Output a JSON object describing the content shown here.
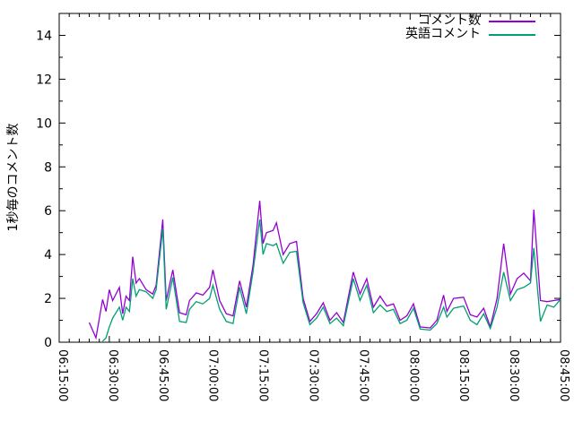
{
  "chart_data": {
    "type": "line",
    "title": "",
    "xlabel": "",
    "ylabel": "1秒毎のコメント数",
    "background_color": "#ffffff",
    "axis_color": "#000000",
    "grid": false,
    "legend_position": "top-right-inside",
    "ylim": [
      0,
      15
    ],
    "y_major_step": 2,
    "y_minor_step": 1,
    "y_tick_labels": [
      "0",
      "2",
      "4",
      "6",
      "8",
      "10",
      "12",
      "14"
    ],
    "x_range_minutes": [
      375,
      525
    ],
    "x_major_step_min": 15,
    "x_minor_step_min": 3,
    "x_tick_labels": [
      "06:15:00",
      "06:30:00",
      "06:45:00",
      "07:00:00",
      "07:15:00",
      "07:30:00",
      "07:45:00",
      "08:00:00",
      "08:15:00",
      "08:30:00",
      "08:45:00"
    ],
    "x": [
      "06:24",
      "06:26",
      "06:28",
      "06:29",
      "06:30",
      "06:31",
      "06:33",
      "06:34",
      "06:35",
      "06:36",
      "06:37",
      "06:38",
      "06:39",
      "06:41",
      "06:43",
      "06:44",
      "06:46",
      "06:47",
      "06:49",
      "06:51",
      "06:53",
      "06:54",
      "06:56",
      "06:58",
      "07:00",
      "07:01",
      "07:03",
      "07:05",
      "07:07",
      "07:09",
      "07:11",
      "07:13",
      "07:15",
      "07:16",
      "07:17",
      "07:19",
      "07:20",
      "07:22",
      "07:24",
      "07:26",
      "07:28",
      "07:30",
      "07:32",
      "07:34",
      "07:36",
      "07:38",
      "07:40",
      "07:43",
      "07:45",
      "07:47",
      "07:49",
      "07:51",
      "07:53",
      "07:55",
      "07:57",
      "07:59",
      "08:01",
      "08:03",
      "08:06",
      "08:08",
      "08:10",
      "08:11",
      "08:13",
      "08:16",
      "08:18",
      "08:20",
      "08:22",
      "08:24",
      "08:26",
      "08:28",
      "08:30",
      "08:32",
      "08:34",
      "08:36",
      "08:37",
      "08:39",
      "08:41",
      "08:43",
      "08:45"
    ],
    "series": [
      {
        "name": "コメント数",
        "color": "#9400d3",
        "values": [
          0.9,
          0.2,
          1.95,
          1.4,
          2.4,
          1.9,
          2.5,
          1.3,
          2.1,
          1.9,
          3.9,
          2.7,
          2.9,
          2.4,
          2.2,
          2.6,
          5.6,
          1.9,
          3.3,
          1.35,
          1.25,
          1.9,
          2.25,
          2.15,
          2.5,
          3.3,
          1.9,
          1.3,
          1.2,
          2.8,
          1.6,
          3.5,
          6.45,
          4.5,
          5.0,
          5.1,
          5.45,
          4.0,
          4.5,
          4.6,
          2.0,
          0.95,
          1.3,
          1.8,
          1.0,
          1.35,
          0.9,
          3.2,
          2.2,
          2.9,
          1.6,
          2.1,
          1.65,
          1.75,
          1.0,
          1.2,
          1.75,
          0.7,
          0.65,
          1.0,
          2.15,
          1.4,
          2.0,
          2.05,
          1.25,
          1.15,
          1.55,
          0.7,
          2.0,
          4.5,
          2.2,
          2.9,
          3.15,
          2.8,
          6.05,
          1.9,
          1.85,
          1.9,
          1.95
        ]
      },
      {
        "name": "英語コメント",
        "color": "#009e73",
        "values": [
          null,
          null,
          0.05,
          0.2,
          0.7,
          1.1,
          1.6,
          1.0,
          1.6,
          1.4,
          2.9,
          2.1,
          2.4,
          2.3,
          2.0,
          2.4,
          5.2,
          1.5,
          2.95,
          0.95,
          0.9,
          1.5,
          1.85,
          1.75,
          2.0,
          2.6,
          1.5,
          0.95,
          0.85,
          2.5,
          1.3,
          3.2,
          5.6,
          4.0,
          4.5,
          4.4,
          4.5,
          3.6,
          4.1,
          4.15,
          1.8,
          0.8,
          1.1,
          1.6,
          0.85,
          1.1,
          0.75,
          2.9,
          1.9,
          2.6,
          1.35,
          1.7,
          1.4,
          1.5,
          0.85,
          1.0,
          1.55,
          0.6,
          0.55,
          0.85,
          1.6,
          1.15,
          1.55,
          1.65,
          1.0,
          0.8,
          1.3,
          0.62,
          1.6,
          3.2,
          1.9,
          2.4,
          2.5,
          2.7,
          4.3,
          0.95,
          1.7,
          1.6,
          1.95
        ]
      }
    ]
  }
}
